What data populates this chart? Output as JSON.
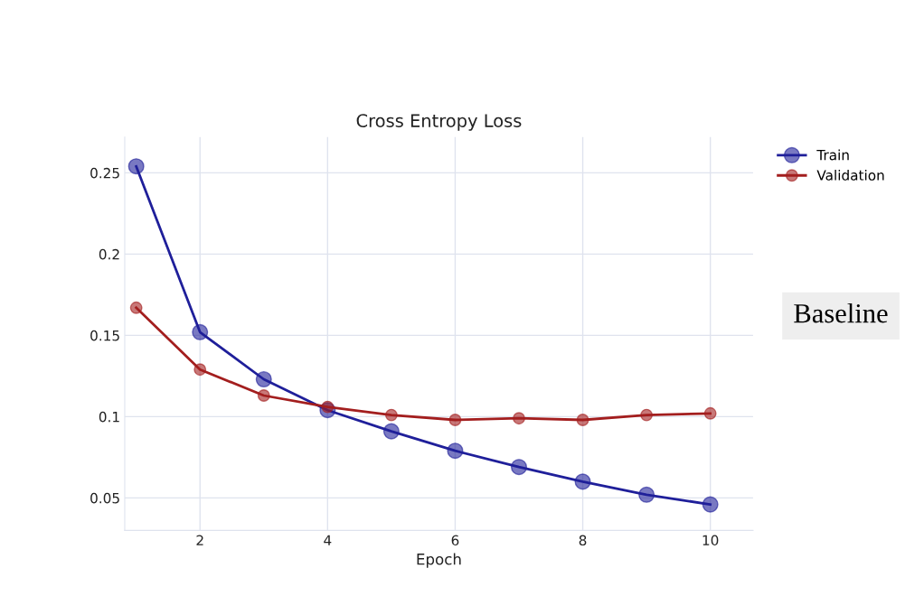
{
  "chart_data": {
    "type": "line",
    "title": "Cross Entropy Loss",
    "xlabel": "Epoch",
    "x": [
      1,
      2,
      3,
      4,
      5,
      6,
      7,
      8,
      9,
      10
    ],
    "series": [
      {
        "name": "Train",
        "color": "#1f1f9a",
        "values": [
          0.254,
          0.152,
          0.123,
          0.104,
          0.091,
          0.079,
          0.069,
          0.06,
          0.052,
          0.046
        ]
      },
      {
        "name": "Validation",
        "color": "#a31e1e",
        "values": [
          0.167,
          0.129,
          0.113,
          0.106,
          0.101,
          0.098,
          0.099,
          0.098,
          0.101,
          0.102
        ]
      }
    ],
    "xlim": [
      0.82,
      10.67
    ],
    "ylim": [
      0.03,
      0.272
    ],
    "xticks": [
      2,
      4,
      6,
      8,
      10
    ],
    "yticks": [
      0.05,
      0.1,
      0.15,
      0.2,
      0.25
    ],
    "annotations": [
      "Baseline"
    ],
    "grid": true,
    "legend": "top right",
    "marker": "circle",
    "line_style": "solid"
  }
}
